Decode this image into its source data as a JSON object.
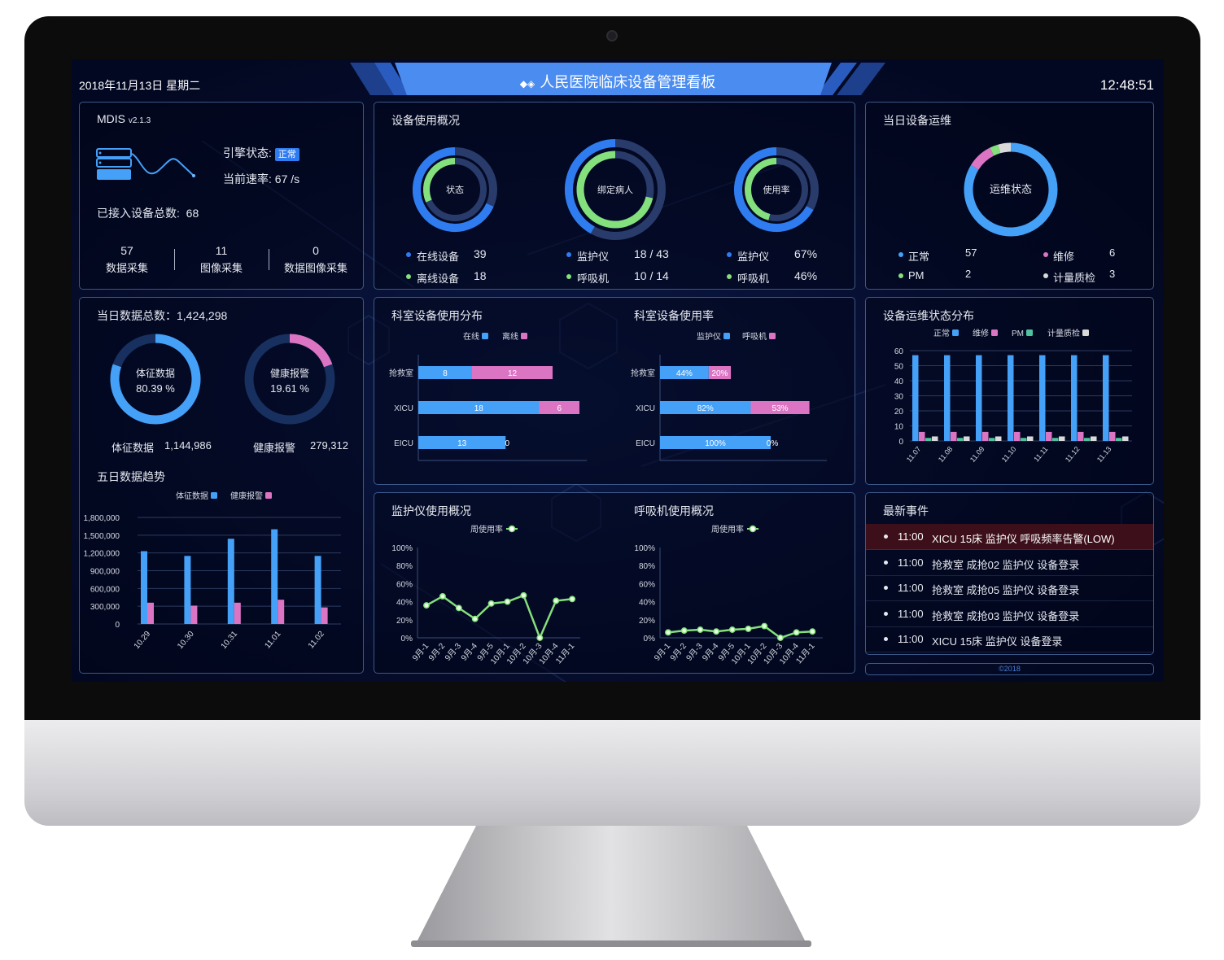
{
  "header": {
    "date": "2018年11月13日 星期二",
    "title": "人民医院临床设备管理看板",
    "title_icon": "diamonds-icon",
    "time": "12:48:51"
  },
  "system": {
    "name": "MDIS",
    "version": "v2.1.3",
    "engine_label": "引擎状态:",
    "engine_status": "正常",
    "rate_label": "当前速率:",
    "rate_value": "67 /s",
    "total_label": "已接入设备总数:",
    "total_value": "68",
    "stats": [
      {
        "value": "57",
        "label": "数据采集"
      },
      {
        "value": "11",
        "label": "图像采集"
      },
      {
        "value": "0",
        "label": "数据图像采集"
      }
    ]
  },
  "usage": {
    "title": "设备使用概况",
    "donuts": [
      {
        "center": "状态",
        "outer_fraction": 0.684,
        "inner_fraction": 0.316,
        "items": [
          {
            "label": "在线设备",
            "value": "39"
          },
          {
            "label": "离线设备",
            "value": "18"
          }
        ]
      },
      {
        "center": "绑定病人",
        "outer_fraction": 0.419,
        "inner_fraction": 0.714,
        "items": [
          {
            "label": "监护仪",
            "value": "18 / 43"
          },
          {
            "label": "呼吸机",
            "value": "10 / 14"
          }
        ]
      },
      {
        "center": "使用率",
        "outer_fraction": 0.67,
        "inner_fraction": 0.46,
        "items": [
          {
            "label": "监护仪",
            "value": "67%"
          },
          {
            "label": "呼吸机",
            "value": "46%"
          }
        ]
      }
    ]
  },
  "maintenance": {
    "title": "当日设备运维",
    "center": "运维状态",
    "items": [
      {
        "label": "正常",
        "value": "57",
        "color": "#45a0f7"
      },
      {
        "label": "维修",
        "value": "6",
        "color": "#dc74c4"
      },
      {
        "label": "PM",
        "value": "2",
        "color": "#84e07c"
      },
      {
        "label": "计量质检",
        "value": "3",
        "color": "#d9d9d9"
      }
    ]
  },
  "daily": {
    "title": "当日数据总数：1,424,298",
    "vital": {
      "center": "体征数据",
      "percent": "80.39 %",
      "fraction": 0.8039,
      "label": "体征数据",
      "value": "1,144,986",
      "color": "#45a0f7"
    },
    "alarm": {
      "center": "健康报警",
      "percent": "19.61 %",
      "fraction": 0.1961,
      "label": "健康报警",
      "value": "279,312",
      "color": "#dc74c4"
    }
  },
  "events": {
    "title": "最新事件",
    "items": [
      {
        "time": "11:00",
        "text": "XICU 15床 监护仪 呼吸频率告警(LOW)",
        "alert": true
      },
      {
        "time": "11:00",
        "text": "抢救室 成抢02 监护仪 设备登录",
        "alert": false
      },
      {
        "time": "11:00",
        "text": "抢救室 成抢05 监护仪 设备登录",
        "alert": false
      },
      {
        "time": "11:00",
        "text": "抢救室 成抢03 监护仪 设备登录",
        "alert": false
      },
      {
        "time": "11:00",
        "text": "XICU 15床 监护仪 设备登录",
        "alert": false
      }
    ]
  },
  "footer": "©2018",
  "colors": {
    "blue": "#45a0f7",
    "ring_blue": "#2f7cf0",
    "pink": "#dc74c4",
    "green": "#84e07c",
    "teal": "#4fc3a0",
    "grey": "#d9d9d9",
    "alert_row": "#3c0f1a"
  },
  "chart_data": [
    {
      "type": "bar",
      "title": "五日数据趋势",
      "categories": [
        "10.29",
        "10.30",
        "10.31",
        "11.01",
        "11.02"
      ],
      "series": [
        {
          "name": "体征数据",
          "values": [
            1230000,
            1150000,
            1440000,
            1600000,
            1150000
          ],
          "color": "#45a0f7"
        },
        {
          "name": "健康报警",
          "values": [
            360000,
            310000,
            360000,
            410000,
            280000
          ],
          "color": "#dc74c4"
        }
      ],
      "ylim": [
        0,
        1800000
      ],
      "yticks": [
        "0",
        "300,000",
        "600,000",
        "900,000",
        "1,200,000",
        "1,500,000",
        "1,800,000"
      ],
      "grid": true,
      "legend": "top"
    },
    {
      "type": "bar",
      "orientation": "horizontal",
      "stacked": true,
      "title": "科室设备使用分布",
      "categories": [
        "抢救室",
        "XICU",
        "EICU"
      ],
      "series": [
        {
          "name": "在线",
          "values": [
            8,
            18,
            13
          ],
          "color": "#45a0f7"
        },
        {
          "name": "离线",
          "values": [
            12,
            6,
            0
          ],
          "color": "#dc74c4"
        }
      ],
      "legend": "top"
    },
    {
      "type": "bar",
      "orientation": "horizontal",
      "stacked": true,
      "title": "科室设备使用率",
      "categories": [
        "抢救室",
        "XICU",
        "EICU"
      ],
      "series": [
        {
          "name": "监护仪",
          "values": [
            44,
            82,
            100
          ],
          "labels": [
            "44%",
            "82%",
            "100%"
          ],
          "color": "#45a0f7"
        },
        {
          "name": "呼吸机",
          "values": [
            20,
            53,
            0
          ],
          "labels": [
            "20%",
            "53%",
            "0%"
          ],
          "color": "#dc74c4"
        }
      ],
      "legend": "top"
    },
    {
      "type": "bar",
      "title": "设备运维状态分布",
      "categories": [
        "11.07",
        "11.08",
        "11.09",
        "11.10",
        "11.11",
        "11.12",
        "11.13"
      ],
      "series": [
        {
          "name": "正常",
          "values": [
            57,
            57,
            57,
            57,
            57,
            57,
            57
          ],
          "color": "#45a0f7"
        },
        {
          "name": "维修",
          "values": [
            6,
            6,
            6,
            6,
            6,
            6,
            6
          ],
          "color": "#dc74c4"
        },
        {
          "name": "PM",
          "values": [
            2,
            2,
            2,
            2,
            2,
            2,
            2
          ],
          "color": "#4fc3a0"
        },
        {
          "name": "计量质检",
          "values": [
            3,
            3,
            3,
            3,
            3,
            3,
            3
          ],
          "color": "#d9d9d9"
        }
      ],
      "ylim": [
        0,
        60
      ],
      "yticks": [
        "0",
        "10",
        "20",
        "30",
        "40",
        "50",
        "60"
      ],
      "grid": true,
      "legend": "top"
    },
    {
      "type": "line",
      "title": "监护仪使用概况",
      "x": [
        "9月-1",
        "9月-2",
        "9月-3",
        "9月-4",
        "9月-5",
        "10月-1",
        "10月-2",
        "10月-3",
        "10月-4",
        "11月-1"
      ],
      "series": [
        {
          "name": "周使用率",
          "values": [
            36,
            46,
            33,
            21,
            38,
            40,
            47,
            0,
            41,
            43
          ],
          "color": "#84e07c"
        }
      ],
      "ylim": [
        0,
        100
      ],
      "yticks": [
        "0%",
        "20%",
        "40%",
        "60%",
        "80%",
        "100%"
      ],
      "legend": "top"
    },
    {
      "type": "line",
      "title": "呼吸机使用概况",
      "x": [
        "9月-1",
        "9月-2",
        "9月-3",
        "9月-4",
        "9月-5",
        "10月-1",
        "10月-2",
        "10月-3",
        "10月-4",
        "11月-1"
      ],
      "series": [
        {
          "name": "周使用率",
          "values": [
            6,
            8,
            9,
            7,
            9,
            10,
            13,
            0,
            6,
            7
          ],
          "color": "#84e07c"
        }
      ],
      "ylim": [
        0,
        100
      ],
      "yticks": [
        "0%",
        "20%",
        "40%",
        "60%",
        "80%",
        "100%"
      ],
      "legend": "top"
    }
  ]
}
